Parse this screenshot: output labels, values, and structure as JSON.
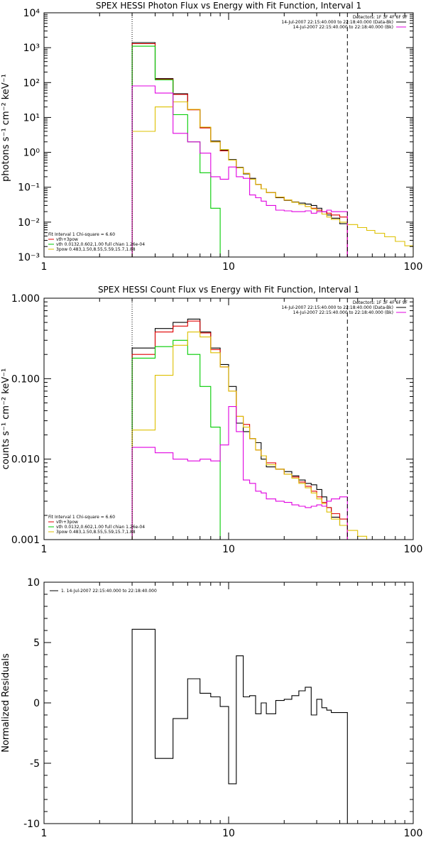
{
  "chart_data": [
    {
      "type": "line",
      "title": "SPEX HESSI Photon Flux vs Energy with Fit Function, Interval 1",
      "xlabel": "",
      "ylabel": "photons s⁻¹ cm⁻² keV⁻¹",
      "xscale": "log",
      "yscale": "log",
      "xlim": [
        1,
        100
      ],
      "ylim": [
        0.001,
        10000
      ],
      "x_ticks": [
        "1",
        "10",
        "100"
      ],
      "y_ticks": [
        "10⁻³",
        "10⁻²",
        "10⁻¹",
        "10⁰",
        "10¹",
        "10²",
        "10³",
        "10⁴"
      ],
      "y_tick_values": [
        0.001,
        0.01,
        0.1,
        1,
        10,
        100,
        1000,
        10000
      ],
      "vlines": [
        {
          "x": 3,
          "style": "dotted"
        },
        {
          "x": 44,
          "style": "dashed"
        }
      ],
      "legend_top": [
        {
          "text": "Detectors: 1F 3F 4F 6F 9F",
          "color": ""
        },
        {
          "text": "14-Jul-2007 22:15:40.000 to 22:18:40.000 (Data-Bk)",
          "color": "#000000"
        },
        {
          "text": "14-Jul-2007 22:15:40.000 to 22:18:40.000 (Bk)",
          "color": "#e000e0"
        }
      ],
      "legend_bottom": [
        {
          "text": "Fit Interval 1   Chi-square = 6.60",
          "color": ""
        },
        {
          "text": "vth+3pow",
          "color": "#e00000"
        },
        {
          "text": "vth 0.0132,0.602,1.00  full chian 1.26e-04",
          "color": "#00cc00"
        },
        {
          "text": "3pow 0.483,1.50,8.55,5.59,15.7,1.88",
          "color": "#ddc000"
        }
      ],
      "edges": [
        3,
        4,
        5,
        6,
        7,
        8,
        9,
        10,
        11,
        12,
        13,
        14,
        15,
        16,
        18,
        20,
        22,
        24,
        26,
        28,
        30,
        32,
        34,
        36,
        40,
        44,
        50,
        56,
        62,
        70,
        80,
        90,
        100
      ],
      "series": [
        {
          "name": "Data-Bk",
          "color": "#000000",
          "values": [
            1400,
            130,
            48,
            17,
            5.2,
            2.1,
            1.15,
            0.62,
            0.37,
            0.24,
            0.18,
            0.12,
            0.09,
            0.07,
            0.05,
            0.042,
            0.038,
            0.035,
            0.033,
            0.03,
            0.025,
            0.02,
            0.016,
            0.013,
            0.009
          ]
        },
        {
          "name": "vth+3pow",
          "color": "#e00000",
          "values": [
            1300,
            125,
            46,
            16.5,
            5,
            2,
            1.1,
            0.6,
            0.36,
            0.25,
            0.17,
            0.12,
            0.09,
            0.07,
            0.052,
            0.043,
            0.037,
            0.032,
            0.028,
            0.025,
            0.022,
            0.02,
            0.018,
            0.016,
            0.014
          ]
        },
        {
          "name": "vth",
          "color": "#00cc00",
          "values": [
            1100,
            120,
            12,
            2,
            0.26,
            0.025,
            0.0008
          ]
        },
        {
          "name": "3pow",
          "color": "#ddc000",
          "values": [
            4,
            20,
            28,
            17,
            5.3,
            2,
            1.2,
            0.6,
            0.36,
            0.25,
            0.17,
            0.12,
            0.09,
            0.07,
            0.052,
            0.043,
            0.037,
            0.032,
            0.028,
            0.024,
            0.02,
            0.017,
            0.014,
            0.012,
            0.01,
            0.0085,
            0.007,
            0.0058,
            0.0048,
            0.0038,
            0.0028,
            0.0021
          ]
        },
        {
          "name": "Bk",
          "color": "#e000e0",
          "values": [
            80,
            50,
            3.5,
            2,
            0.95,
            0.2,
            0.17,
            0.38,
            0.2,
            0.18,
            0.06,
            0.05,
            0.04,
            0.03,
            0.022,
            0.021,
            0.02,
            0.02,
            0.021,
            0.018,
            0.02,
            0.02,
            0.022,
            0.02,
            0.02
          ]
        }
      ]
    },
    {
      "type": "line",
      "title": "SPEX HESSI Count Flux vs Energy with Fit Function, Interval 1",
      "xlabel": "",
      "ylabel": "counts s⁻¹ cm⁻² keV⁻¹",
      "xscale": "log",
      "yscale": "log",
      "xlim": [
        1,
        100
      ],
      "ylim": [
        0.001,
        1
      ],
      "x_ticks": [
        "1",
        "10",
        "100"
      ],
      "y_ticks": [
        "0.001",
        "0.010",
        "0.100",
        "1.000"
      ],
      "y_tick_values": [
        0.001,
        0.01,
        0.1,
        1
      ],
      "vlines": [
        {
          "x": 3,
          "style": "dotted"
        },
        {
          "x": 44,
          "style": "dashed"
        }
      ],
      "legend_top": [
        {
          "text": "Detectors: 1F 3F 4F 6F 9F",
          "color": ""
        },
        {
          "text": "14-Jul-2007 22:15:40.000 to 22:18:40.000 (Data-Bk)",
          "color": "#000000"
        },
        {
          "text": "14-Jul-2007 22:15:40.000 to 22:18:40.000 (Bk)",
          "color": "#e000e0"
        }
      ],
      "legend_bottom": [
        {
          "text": "Fit Interval 1   Chi-square = 6.60",
          "color": ""
        },
        {
          "text": "vth+3pow",
          "color": "#e00000"
        },
        {
          "text": "vth 0.0132,0.602,1.00  full chian 1.26e-04",
          "color": "#00cc00"
        },
        {
          "text": "3pow 0.483,1.50,8.55,5.59,15.7,1.88",
          "color": "#ddc000"
        }
      ],
      "edges": [
        3,
        4,
        5,
        6,
        7,
        8,
        9,
        10,
        11,
        12,
        13,
        14,
        15,
        16,
        18,
        20,
        22,
        24,
        26,
        28,
        30,
        32,
        34,
        36,
        40,
        44,
        50,
        56,
        62,
        70
      ],
      "series": [
        {
          "name": "Data-Bk",
          "color": "#000000",
          "values": [
            0.24,
            0.42,
            0.5,
            0.55,
            0.38,
            0.24,
            0.15,
            0.08,
            0.028,
            0.022,
            0.018,
            0.016,
            0.01,
            0.008,
            0.0075,
            0.007,
            0.0062,
            0.0055,
            0.005,
            0.0048,
            0.0042,
            0.0034,
            0.0025,
            0.0019,
            0.0015
          ]
        },
        {
          "name": "vth+3pow",
          "color": "#e00000",
          "values": [
            0.2,
            0.38,
            0.45,
            0.52,
            0.37,
            0.23,
            0.14,
            0.07,
            0.034,
            0.027,
            0.018,
            0.013,
            0.011,
            0.009,
            0.0075,
            0.0065,
            0.006,
            0.0052,
            0.0046,
            0.004,
            0.0034,
            0.0029,
            0.0025,
            0.0021,
            0.0018
          ]
        },
        {
          "name": "vth",
          "color": "#00cc00",
          "values": [
            0.18,
            0.25,
            0.3,
            0.2,
            0.08,
            0.025,
            0.0009
          ]
        },
        {
          "name": "3pow",
          "color": "#ddc000",
          "values": [
            0.023,
            0.11,
            0.26,
            0.38,
            0.33,
            0.21,
            0.14,
            0.07,
            0.034,
            0.025,
            0.018,
            0.013,
            0.011,
            0.0085,
            0.0075,
            0.0065,
            0.0058,
            0.005,
            0.0044,
            0.0038,
            0.0032,
            0.0028,
            0.0022,
            0.0018,
            0.0015,
            0.0013,
            0.0011,
            0.001,
            0.0009
          ]
        },
        {
          "name": "Bk",
          "color": "#e000e0",
          "values": [
            0.014,
            0.012,
            0.01,
            0.0095,
            0.01,
            0.0095,
            0.015,
            0.045,
            0.022,
            0.0055,
            0.005,
            0.004,
            0.0038,
            0.0032,
            0.003,
            0.0029,
            0.0027,
            0.0026,
            0.0025,
            0.0026,
            0.0027,
            0.0026,
            0.003,
            0.0032,
            0.0034
          ]
        }
      ]
    },
    {
      "type": "line",
      "title": "",
      "xlabel": "",
      "ylabel": "Normalized Residuals",
      "xscale": "log",
      "yscale": "linear",
      "xlim": [
        1,
        100
      ],
      "ylim": [
        -10,
        10
      ],
      "x_ticks": [
        "1",
        "10",
        "100"
      ],
      "y_ticks": [
        "-10",
        "-5",
        "0",
        "5",
        "10"
      ],
      "y_tick_values": [
        -10,
        -5,
        0,
        5,
        10
      ],
      "vlines": [],
      "legend_top": [
        {
          "text": "1. 14-Jul-2007 22:15:40.000 to 22:18:40.000",
          "color": "#000000"
        }
      ],
      "legend_bottom": [],
      "edges": [
        3,
        4,
        5,
        6,
        7,
        8,
        9,
        10,
        11,
        12,
        13,
        14,
        15,
        16,
        18,
        20,
        22,
        24,
        26,
        28,
        30,
        32,
        34,
        36,
        40,
        44
      ],
      "series": [
        {
          "name": "1. 14-Jul-2007 22:15:40.000 to 22:18:40.000",
          "color": "#000000",
          "values": [
            6.1,
            -4.6,
            -1.3,
            2,
            0.8,
            0.5,
            -0.3,
            -6.7,
            3.9,
            0.5,
            0.6,
            -0.9,
            0,
            -0.9,
            0.2,
            0.3,
            0.6,
            1,
            1.3,
            -1,
            0.3,
            -0.4,
            -0.6,
            -0.8,
            -0.8
          ]
        }
      ]
    }
  ]
}
